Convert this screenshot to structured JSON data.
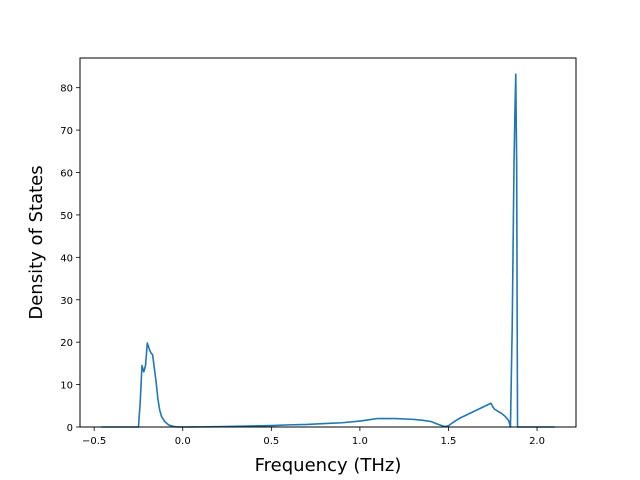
{
  "chart_data": {
    "type": "line",
    "title": "",
    "xlabel": "Frequency (THz)",
    "ylabel": "Density of States",
    "xlim": [
      -0.58,
      2.22
    ],
    "ylim": [
      0,
      87
    ],
    "xticks": [
      -0.5,
      0.0,
      0.5,
      1.0,
      1.5,
      2.0
    ],
    "xtick_labels": [
      "−0.5",
      "0.0",
      "0.5",
      "1.0",
      "1.5",
      "2.0"
    ],
    "yticks": [
      0,
      10,
      20,
      30,
      40,
      50,
      60,
      70,
      80
    ],
    "ytick_labels": [
      "0",
      "10",
      "20",
      "30",
      "40",
      "50",
      "60",
      "70",
      "80"
    ],
    "grid": false,
    "line_color": "#1f77b4",
    "series": [
      {
        "x": [
          -0.46,
          -0.25,
          -0.24,
          -0.23,
          -0.22,
          -0.21,
          -0.2,
          -0.19,
          -0.18,
          -0.17,
          -0.15,
          -0.14,
          -0.13,
          -0.12,
          -0.1,
          -0.08,
          -0.06,
          -0.04,
          -0.02,
          0.0,
          0.05,
          0.1,
          0.2,
          0.3,
          0.4,
          0.5,
          0.6,
          0.7,
          0.8,
          0.9,
          1.0,
          1.05,
          1.1,
          1.2,
          1.3,
          1.35,
          1.4,
          1.45,
          1.48,
          1.5,
          1.53,
          1.56,
          1.6,
          1.65,
          1.7,
          1.74,
          1.75,
          1.76,
          1.8,
          1.82,
          1.84,
          1.85,
          1.86,
          1.87,
          1.875,
          1.88,
          1.885,
          1.89,
          1.895,
          1.9,
          1.95,
          2.0,
          2.1
        ],
        "y": [
          0,
          0,
          6,
          14.5,
          13,
          14.5,
          19.8,
          18.5,
          17.5,
          17,
          10.5,
          6.5,
          4,
          2.5,
          1.2,
          0.5,
          0.2,
          0.05,
          0.02,
          0.0,
          0.01,
          0.03,
          0.08,
          0.15,
          0.25,
          0.35,
          0.5,
          0.6,
          0.8,
          1.0,
          1.4,
          1.7,
          2.0,
          2.0,
          1.8,
          1.6,
          1.3,
          0.5,
          0.1,
          0.3,
          1.2,
          2.0,
          2.8,
          3.8,
          4.8,
          5.6,
          4.8,
          4.2,
          3.2,
          2.5,
          1.5,
          0.0,
          24,
          62,
          74,
          83.2,
          62,
          0,
          0,
          0,
          0,
          0,
          0
        ]
      }
    ]
  }
}
